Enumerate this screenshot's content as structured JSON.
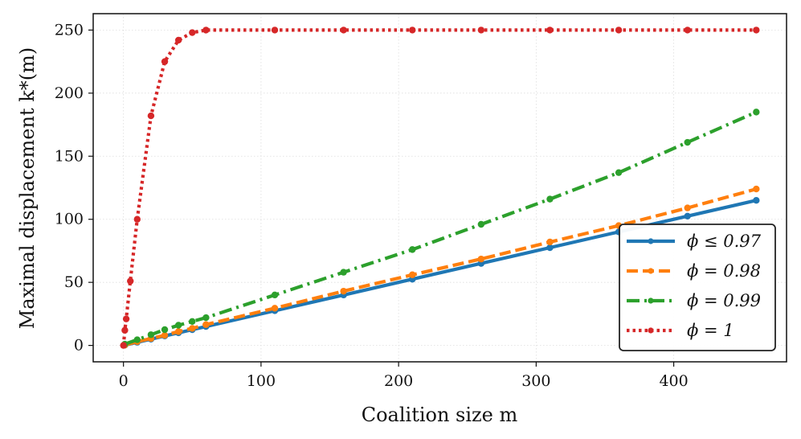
{
  "chart_data": {
    "type": "line",
    "xlabel": "Coalition size m",
    "ylabel": "Maximal displacement k*(m)",
    "xlim": [
      -22,
      482
    ],
    "ylim": [
      -13,
      263
    ],
    "xticks": [
      0,
      100,
      200,
      300,
      400
    ],
    "yticks": [
      0,
      50,
      100,
      150,
      200,
      250
    ],
    "grid": true,
    "legend_position": "lower-right",
    "series": [
      {
        "name": "ϕ ≤ 0.97",
        "color": "#1f77b4",
        "style": "solid",
        "x": [
          1,
          10,
          20,
          30,
          40,
          50,
          60,
          110,
          160,
          210,
          260,
          310,
          360,
          410,
          460
        ],
        "y": [
          0.2,
          2.5,
          5,
          7.5,
          10,
          12.5,
          15,
          27.5,
          40,
          52.5,
          65,
          77.5,
          90,
          102.5,
          115
        ]
      },
      {
        "name": "ϕ = 0.98",
        "color": "#ff7f0e",
        "style": "dashed",
        "x": [
          1,
          10,
          20,
          30,
          40,
          50,
          60,
          110,
          160,
          210,
          260,
          310,
          360,
          410,
          460
        ],
        "y": [
          0.3,
          3,
          5.5,
          8,
          11,
          13.5,
          16.5,
          29.5,
          43,
          56,
          68.5,
          82,
          95,
          109,
          124
        ]
      },
      {
        "name": "ϕ = 0.99",
        "color": "#2ca02c",
        "style": "dashdot",
        "x": [
          1,
          10,
          20,
          30,
          40,
          50,
          60,
          110,
          160,
          210,
          260,
          310,
          360,
          410,
          460
        ],
        "y": [
          1,
          4.5,
          8.5,
          12.5,
          16,
          19,
          22,
          40,
          58,
          76,
          96,
          116,
          137,
          161,
          185
        ]
      },
      {
        "name": "ϕ = 1",
        "color": "#d62728",
        "style": "dotted",
        "x": [
          0,
          1,
          2,
          5,
          10,
          20,
          30,
          40,
          50,
          60,
          110,
          160,
          210,
          260,
          310,
          360,
          410,
          460
        ],
        "y": [
          0,
          12,
          21,
          51,
          100,
          182,
          225,
          242,
          248,
          250,
          250,
          250,
          250,
          250,
          250,
          250,
          250,
          250
        ]
      }
    ]
  },
  "legend": {
    "items": [
      {
        "label": "ϕ ≤ 0.97"
      },
      {
        "label": "ϕ = 0.98"
      },
      {
        "label": "ϕ = 0.99"
      },
      {
        "label": "ϕ = 1"
      }
    ]
  }
}
